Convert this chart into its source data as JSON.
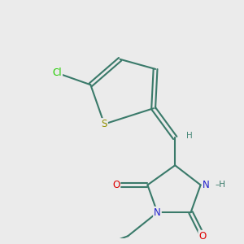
{
  "background_color": "#ebebeb",
  "bond_color": "#3a7a6a",
  "bond_width": 1.5,
  "atom_colors": {
    "C": "#3a7a6a",
    "N": "#2020cc",
    "O": "#dd0000",
    "S": "#909000",
    "Cl": "#22cc00",
    "H": "#4a8a7a"
  },
  "font_size": 8.5,
  "fig_width": 3.0,
  "fig_height": 3.0,
  "dpi": 100,
  "xlim": [
    0.0,
    6.0
  ],
  "ylim": [
    0.0,
    6.0
  ]
}
